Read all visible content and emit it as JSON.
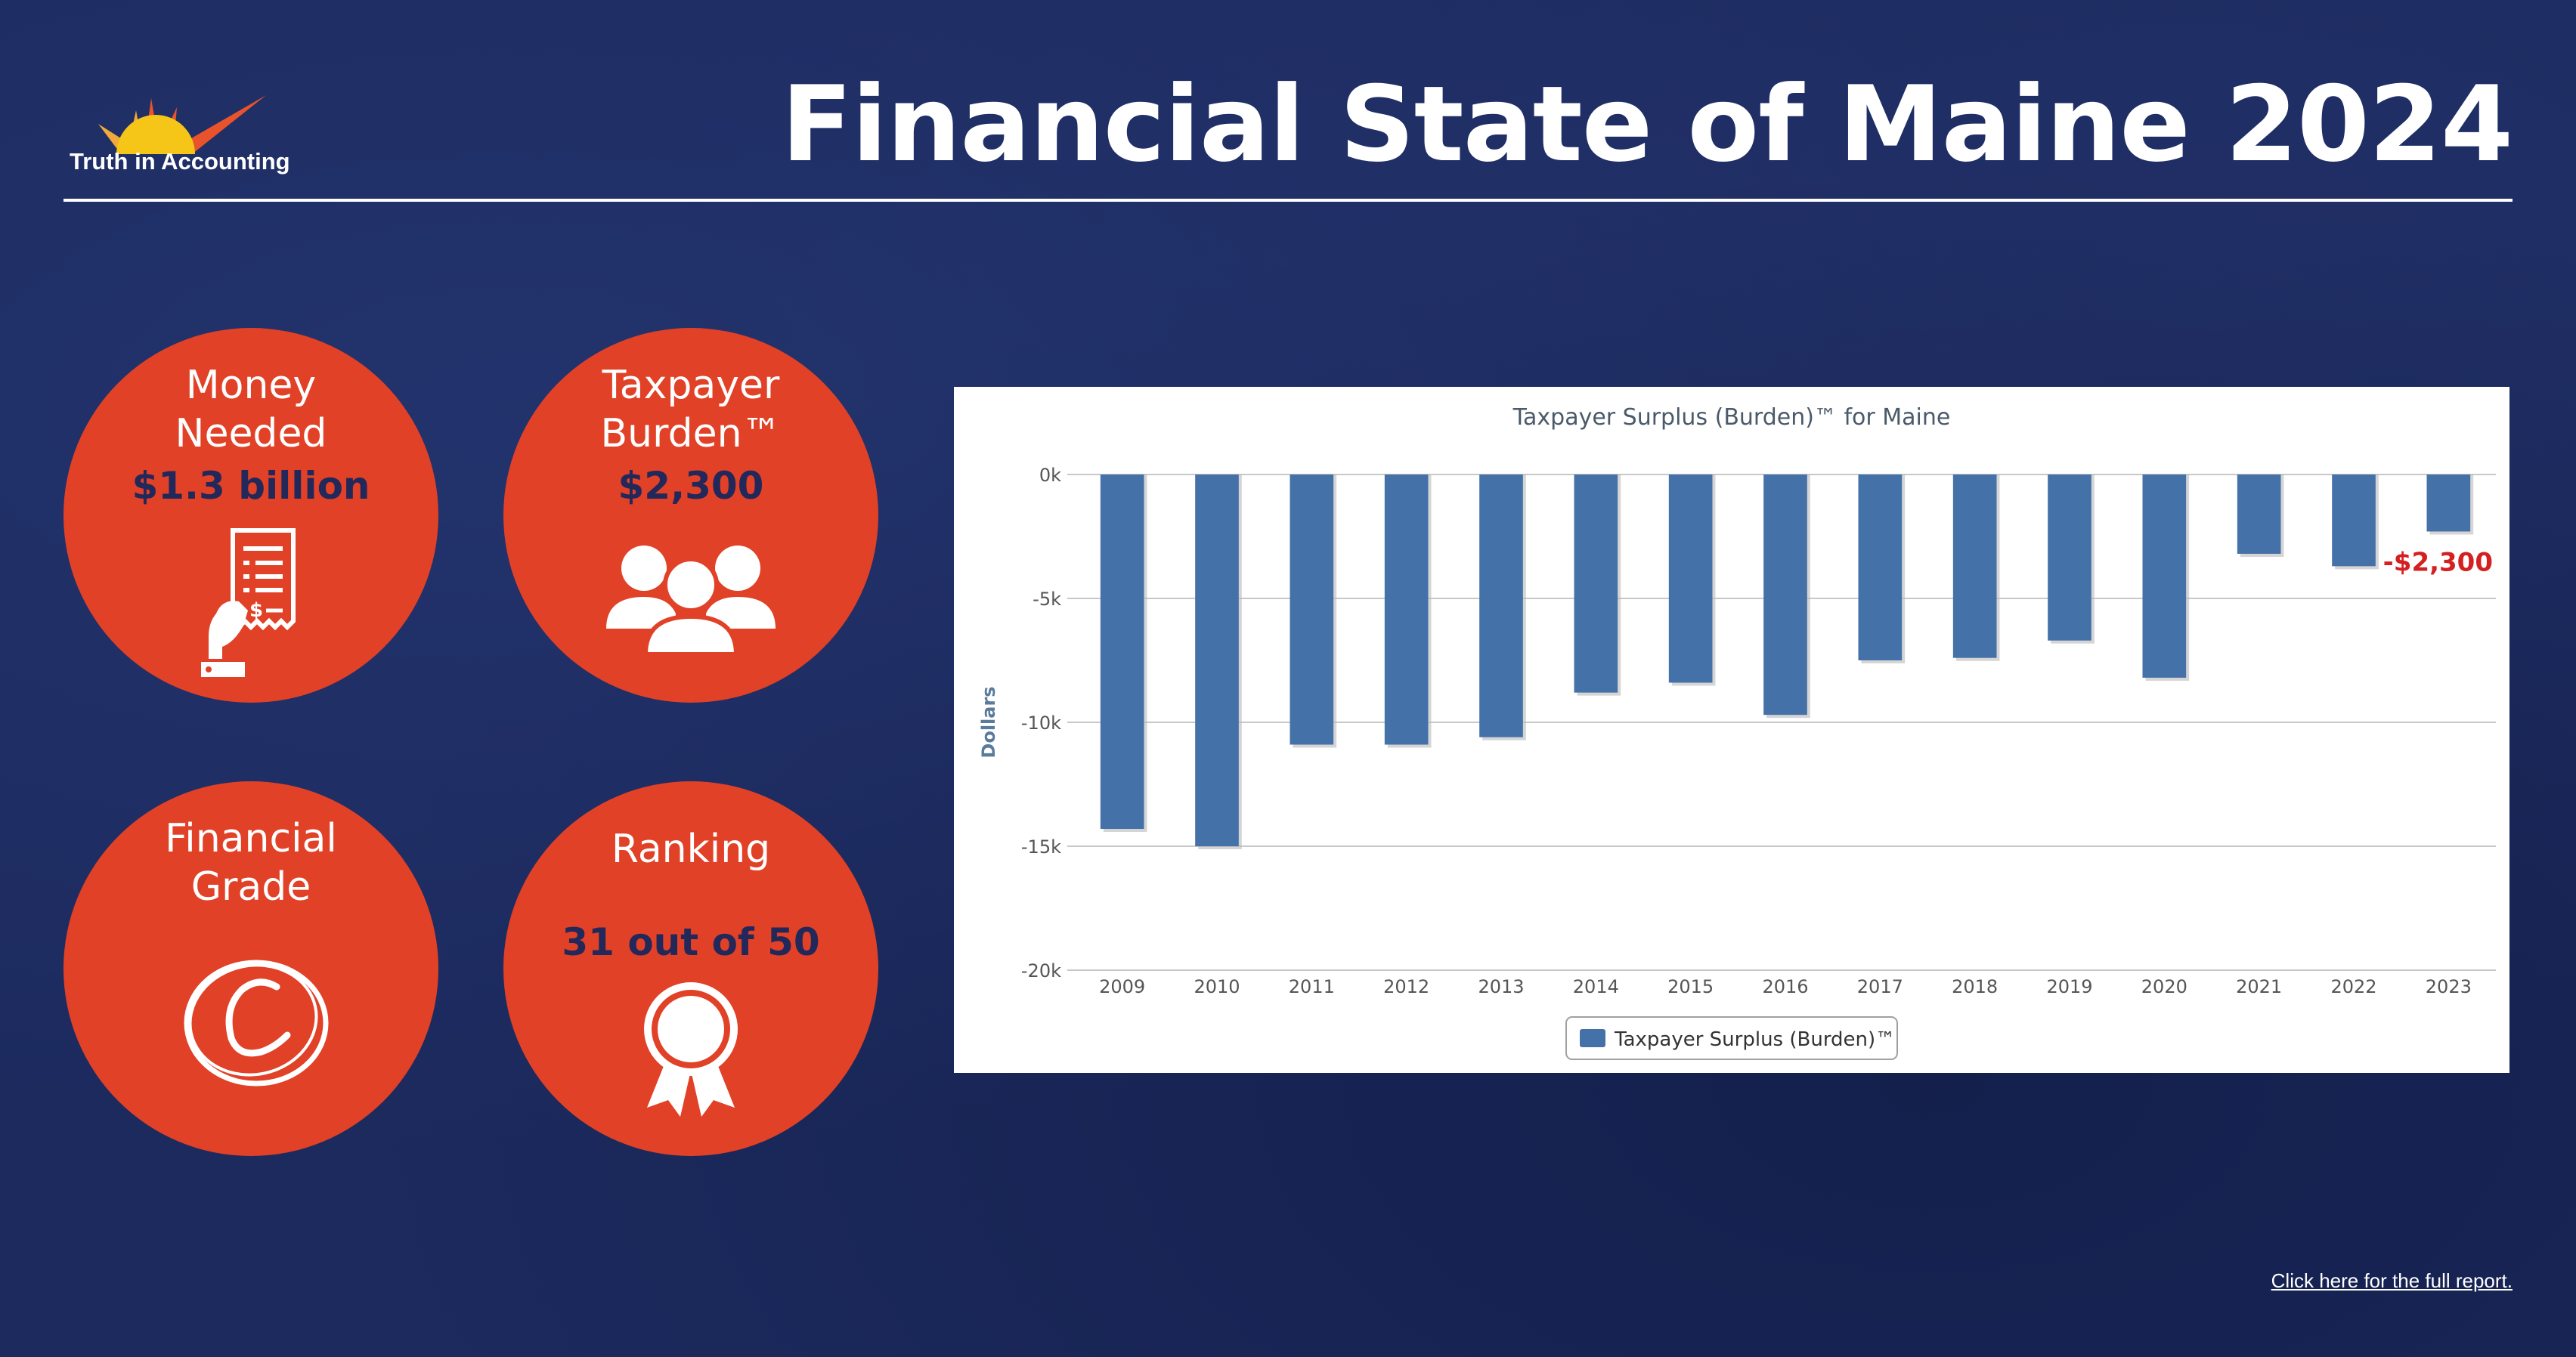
{
  "header": {
    "brand": "Truth in Accounting",
    "title": "Financial State of Maine 2024"
  },
  "stats": {
    "money_needed": {
      "label": "Money Needed",
      "value": "$1.3 billion",
      "icon": "receipt-hand-icon"
    },
    "taxpayer_burden": {
      "label": "Taxpayer Burden™",
      "value": "$2,300",
      "icon": "people-group-icon"
    },
    "financial_grade": {
      "label": "Financial Grade",
      "value": "C",
      "icon": "grade-c-icon"
    },
    "ranking": {
      "label": "Ranking",
      "value": "31 out of 50",
      "icon": "award-ribbon-icon"
    }
  },
  "colors": {
    "background": "#1c2a5e",
    "accent": "#e14127",
    "dark_text": "#22285a",
    "bar": "#4472a8",
    "callout": "#d42020"
  },
  "chart_data": {
    "type": "bar",
    "title": "Taxpayer Surplus (Burden)™ for Maine",
    "ylabel": "Dollars",
    "xlabel": "",
    "categories": [
      "2009",
      "2010",
      "2011",
      "2012",
      "2013",
      "2014",
      "2015",
      "2016",
      "2017",
      "2018",
      "2019",
      "2020",
      "2021",
      "2022",
      "2023"
    ],
    "series": [
      {
        "name": "Taxpayer Surplus (Burden)™",
        "values": [
          -14300,
          -15000,
          -10900,
          -10900,
          -10600,
          -8800,
          -8400,
          -9700,
          -7500,
          -7400,
          -6700,
          -8200,
          -3200,
          -3700,
          -2300
        ]
      }
    ],
    "ylim": [
      -20000,
      0
    ],
    "yticks": [
      0,
      -5000,
      -10000,
      -15000,
      -20000
    ],
    "ytick_labels": [
      "0k",
      "-5k",
      "-10k",
      "-15k",
      "-20k"
    ],
    "annotation": {
      "category": "2023",
      "text": "-$2,300"
    },
    "grid": true,
    "legend": "bottom-center"
  },
  "footer": {
    "link_text": "Click here for the full report."
  }
}
